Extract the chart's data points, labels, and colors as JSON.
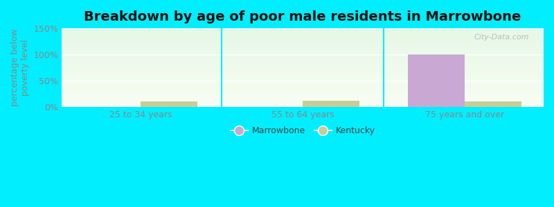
{
  "title": "Breakdown by age of poor male residents in Marrowbone",
  "ylabel": "percentage below\npoverty level",
  "categories": [
    "25 to 34 years",
    "55 to 64 years",
    "75 years and over"
  ],
  "marrowbone_values": [
    0,
    0,
    100
  ],
  "kentucky_values": [
    10,
    12,
    10
  ],
  "marrowbone_color": "#c9a8d4",
  "kentucky_color": "#c8cc98",
  "background_outer": "#00eeff",
  "ylim": [
    0,
    150
  ],
  "yticks": [
    0,
    50,
    100,
    150
  ],
  "ytick_labels": [
    "0%",
    "50%",
    "100%",
    "150%"
  ],
  "bar_width": 0.35,
  "title_fontsize": 14,
  "axis_label_fontsize": 9,
  "tick_fontsize": 9,
  "legend_labels": [
    "Marrowbone",
    "Kentucky"
  ],
  "watermark": "City-Data.com"
}
